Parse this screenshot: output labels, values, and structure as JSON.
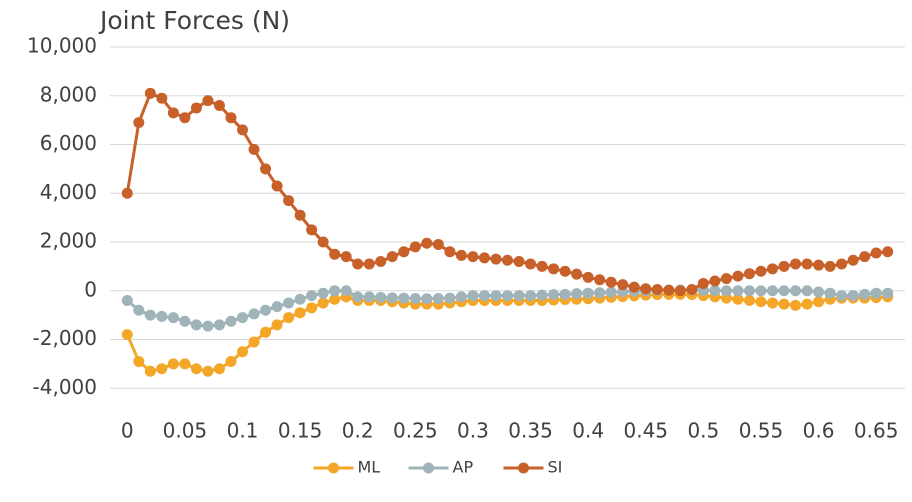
{
  "chart_data": {
    "type": "line",
    "title": "Joint Forces (N)",
    "x": [
      0,
      0.01,
      0.02,
      0.03,
      0.04,
      0.05,
      0.06,
      0.07,
      0.08,
      0.09,
      0.1,
      0.11,
      0.12,
      0.13,
      0.14,
      0.15,
      0.16,
      0.17,
      0.18,
      0.19,
      0.2,
      0.21,
      0.22,
      0.23,
      0.24,
      0.25,
      0.26,
      0.27,
      0.28,
      0.29,
      0.3,
      0.31,
      0.32,
      0.33,
      0.34,
      0.35,
      0.36,
      0.37,
      0.38,
      0.39,
      0.4,
      0.41,
      0.42,
      0.43,
      0.44,
      0.45,
      0.46,
      0.47,
      0.48,
      0.49,
      0.5,
      0.51,
      0.52,
      0.53,
      0.54,
      0.55,
      0.56,
      0.57,
      0.58,
      0.59,
      0.6,
      0.61,
      0.62,
      0.63,
      0.64,
      0.65,
      0.66
    ],
    "series": [
      {
        "name": "ML",
        "color": "#f4a629",
        "values": [
          -1800,
          -2900,
          -3300,
          -3200,
          -3000,
          -3000,
          -3200,
          -3300,
          -3200,
          -2900,
          -2500,
          -2100,
          -1700,
          -1400,
          -1100,
          -900,
          -700,
          -500,
          -350,
          -250,
          -400,
          -400,
          -400,
          -450,
          -500,
          -550,
          -550,
          -550,
          -500,
          -450,
          -400,
          -400,
          -400,
          -400,
          -400,
          -400,
          -400,
          -380,
          -360,
          -350,
          -330,
          -300,
          -270,
          -240,
          -210,
          -180,
          -160,
          -150,
          -150,
          -160,
          -200,
          -250,
          -300,
          -350,
          -400,
          -450,
          -500,
          -550,
          -600,
          -550,
          -450,
          -350,
          -300,
          -300,
          -300,
          -280,
          -250
        ]
      },
      {
        "name": "AP",
        "color": "#9fb3b9",
        "values": [
          -400,
          -800,
          -1000,
          -1050,
          -1100,
          -1250,
          -1400,
          -1450,
          -1400,
          -1250,
          -1100,
          -950,
          -800,
          -650,
          -500,
          -350,
          -200,
          -100,
          0,
          0,
          -250,
          -250,
          -270,
          -290,
          -300,
          -320,
          -330,
          -320,
          -300,
          -250,
          -200,
          -200,
          -200,
          -200,
          -200,
          -200,
          -180,
          -160,
          -150,
          -120,
          -100,
          -80,
          -60,
          -40,
          -20,
          0,
          20,
          30,
          30,
          30,
          20,
          10,
          0,
          0,
          0,
          0,
          0,
          0,
          0,
          0,
          -50,
          -100,
          -200,
          -200,
          -150,
          -100,
          -100
        ]
      },
      {
        "name": "SI",
        "color": "#c8602a",
        "values": [
          4000,
          6900,
          8100,
          7900,
          7300,
          7100,
          7500,
          7800,
          7600,
          7100,
          6600,
          5800,
          5000,
          4300,
          3700,
          3100,
          2500,
          2000,
          1500,
          1400,
          1100,
          1100,
          1200,
          1400,
          1600,
          1800,
          1950,
          1900,
          1600,
          1450,
          1400,
          1350,
          1300,
          1250,
          1200,
          1100,
          1000,
          900,
          800,
          680,
          550,
          450,
          350,
          250,
          150,
          80,
          50,
          20,
          0,
          50,
          300,
          400,
          500,
          600,
          700,
          800,
          900,
          1000,
          1100,
          1100,
          1050,
          1000,
          1100,
          1250,
          1400,
          1550,
          1600
        ]
      }
    ],
    "xlim": [
      -0.015,
      0.675
    ],
    "xticks": [
      0,
      0.05,
      0.1,
      0.15,
      0.2,
      0.25,
      0.3,
      0.35,
      0.4,
      0.45,
      0.5,
      0.55,
      0.6,
      0.65
    ],
    "ylim": [
      -4400,
      10000
    ],
    "yticks": [
      {
        "value": -4000,
        "label": "-4,000"
      },
      {
        "value": -2000,
        "label": "-2,000"
      },
      0,
      {
        "value": 2000,
        "label": "2,000"
      },
      {
        "value": 4000,
        "label": "4,000"
      },
      {
        "value": 6000,
        "label": "6,000"
      },
      {
        "value": 8000,
        "label": "8,000"
      },
      {
        "value": 10000,
        "label": "10,000"
      }
    ],
    "grid": true,
    "legend": "bottom"
  }
}
